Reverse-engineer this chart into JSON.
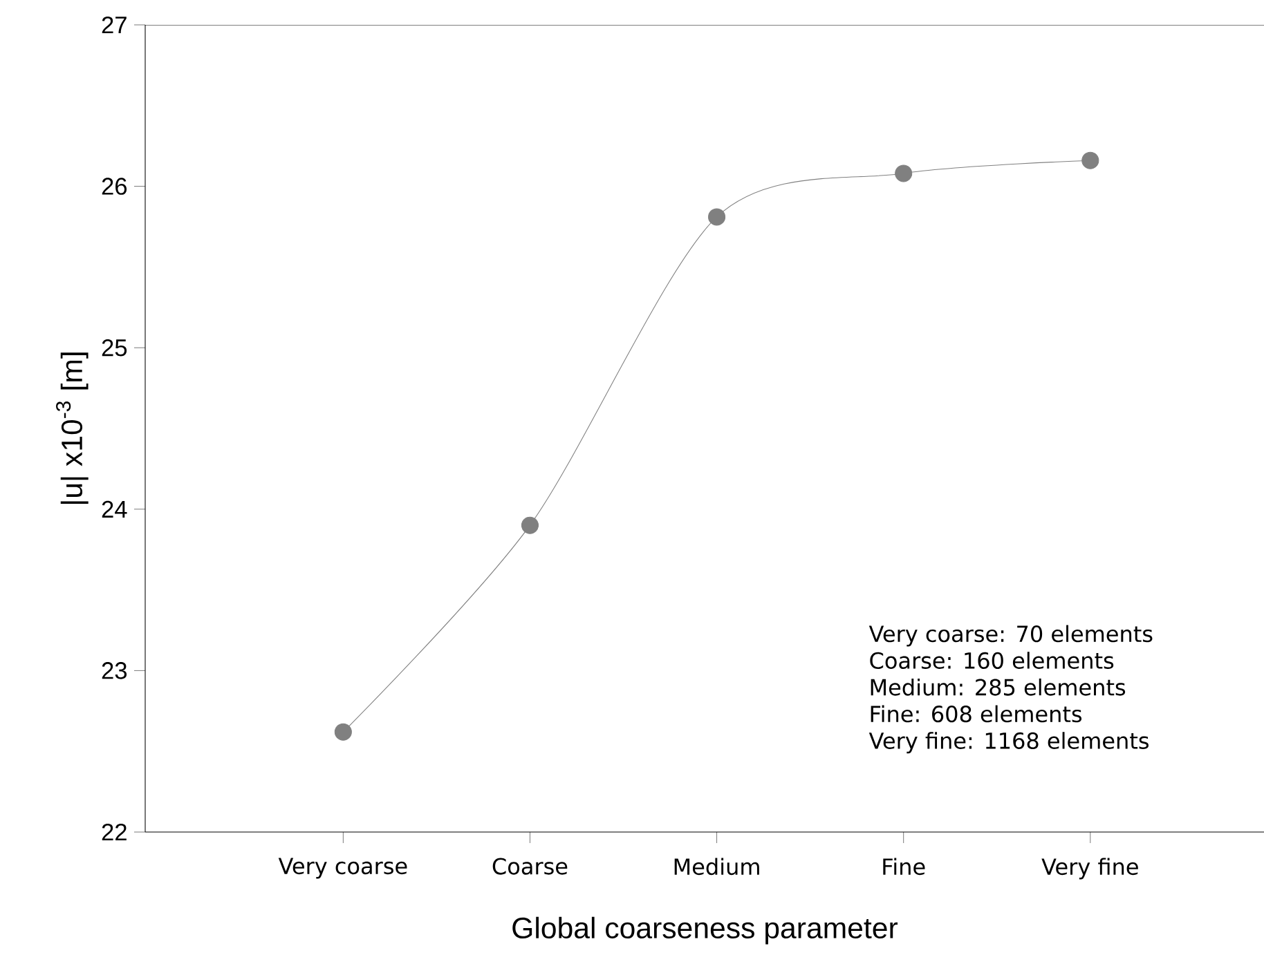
{
  "chart_data": {
    "type": "line",
    "xlabel": "Global coarseness parameter",
    "ylabel": "|u| x10$^{-3}$ [m]",
    "categories": [
      "Very coarse",
      "Coarse",
      "Medium",
      "Fine",
      "Very fine"
    ],
    "series": [
      {
        "color": "#808080",
        "values": [
          22.62,
          23.9,
          25.81,
          26.08,
          26.16
        ]
      }
    ],
    "ylim": [
      22,
      27
    ],
    "yticks": [
      22,
      23,
      24,
      25,
      26,
      27
    ],
    "marker": "circle",
    "line_style": "solid",
    "grid": false,
    "annotations": [
      "Very coarse:  70    elements",
      "Coarse:         160   elements",
      "Medium:         285   elements",
      "Fine:             608   elements",
      "Very fine:     1168  elements"
    ]
  }
}
